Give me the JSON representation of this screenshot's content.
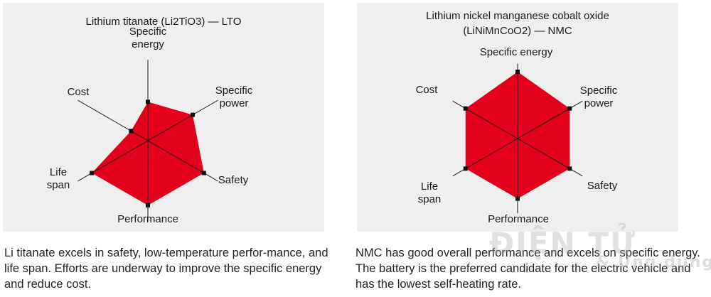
{
  "watermark": {
    "line1": "ĐIỆN TỬ",
    "line2": "& Ứng dụng"
  },
  "chart_data": [
    {
      "type": "radar",
      "title": "Lithium titanate (Li2TiO3) — LTO",
      "axes": [
        "Specific energy",
        "Specific power",
        "Safety",
        "Performance",
        "Life span",
        "Cost"
      ],
      "axis_labels": [
        [
          "Specific",
          "energy"
        ],
        [
          "Specific",
          "power"
        ],
        [
          "Safety"
        ],
        [
          "Performance"
        ],
        [
          "Life",
          "span"
        ],
        [
          "Cost"
        ]
      ],
      "values": [
        0.6,
        0.8,
        1.0,
        1.0,
        1.0,
        0.3
      ],
      "max": 1.0,
      "fill_color": "#e3001b",
      "caption": "Li titanate excels in safety, low-temperature perfor-mance, and life span. Efforts are underway to improve the specific energy and reduce cost."
    },
    {
      "type": "radar",
      "title": "Lithium nickel manganese cobalt oxide (LiNiMnCoO2) — NMC",
      "axes": [
        "Specific energy",
        "Specific power",
        "Safety",
        "Performance",
        "Life span",
        "Cost"
      ],
      "axis_labels": [
        [
          "Specific energy"
        ],
        [
          "Specific",
          "power"
        ],
        [
          "Safety"
        ],
        [
          "Performance"
        ],
        [
          "Life",
          "span"
        ],
        [
          "Cost"
        ]
      ],
      "values": [
        1.0,
        0.9,
        0.9,
        0.9,
        0.9,
        0.9
      ],
      "max": 1.0,
      "fill_color": "#e3001b",
      "caption": "NMC has good overall performance and excels on specific energy. The battery is the preferred candidate for the electric vehicle and has the lowest self-heating rate."
    }
  ]
}
